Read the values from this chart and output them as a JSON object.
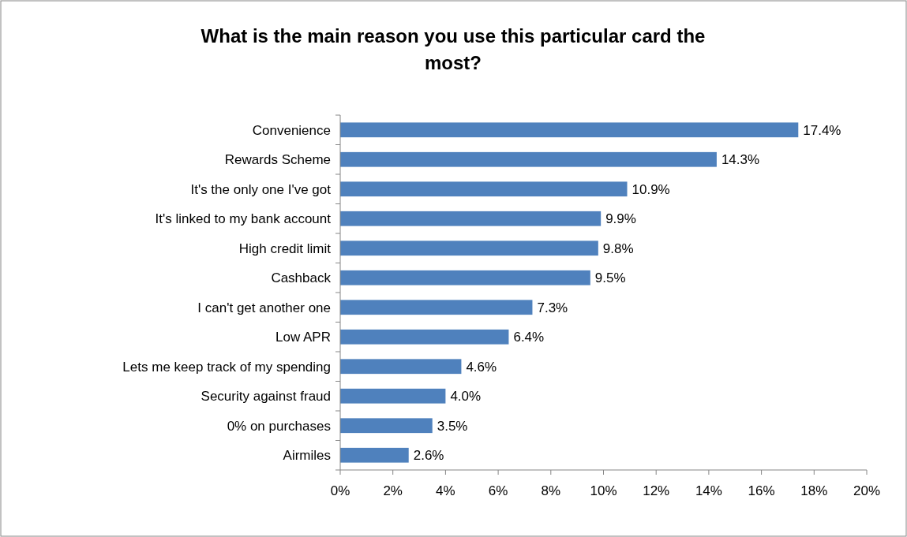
{
  "chart_data": {
    "type": "bar",
    "orientation": "horizontal",
    "title": "What is the main reason you use this particular card the most?",
    "categories": [
      "Convenience",
      "Rewards Scheme",
      "It's the only one I've got",
      "It's linked to my bank account",
      "High credit limit",
      "Cashback",
      "I can't get another one",
      "Low APR",
      "Lets me keep track of my spending",
      "Security against fraud",
      "0% on purchases",
      "Airmiles"
    ],
    "values": [
      17.4,
      14.3,
      10.9,
      9.9,
      9.8,
      9.5,
      7.3,
      6.4,
      4.6,
      4.0,
      3.5,
      2.6
    ],
    "value_labels": [
      "17.4%",
      "14.3%",
      "10.9%",
      "9.9%",
      "9.8%",
      "9.5%",
      "7.3%",
      "6.4%",
      "4.6%",
      "4.0%",
      "3.5%",
      "2.6%"
    ],
    "color": "#4f81bd",
    "xlim": [
      0,
      20
    ],
    "xticks": [
      {
        "value": 0,
        "label": "0%"
      },
      {
        "value": 2,
        "label": "2%"
      },
      {
        "value": 4,
        "label": "4%"
      },
      {
        "value": 6,
        "label": "6%"
      },
      {
        "value": 8,
        "label": "8%"
      },
      {
        "value": 10,
        "label": "10%"
      },
      {
        "value": 12,
        "label": "12%"
      },
      {
        "value": 14,
        "label": "14%"
      },
      {
        "value": 16,
        "label": "16%"
      },
      {
        "value": 18,
        "label": "18%"
      },
      {
        "value": 20,
        "label": "20%"
      }
    ],
    "grid": false
  }
}
